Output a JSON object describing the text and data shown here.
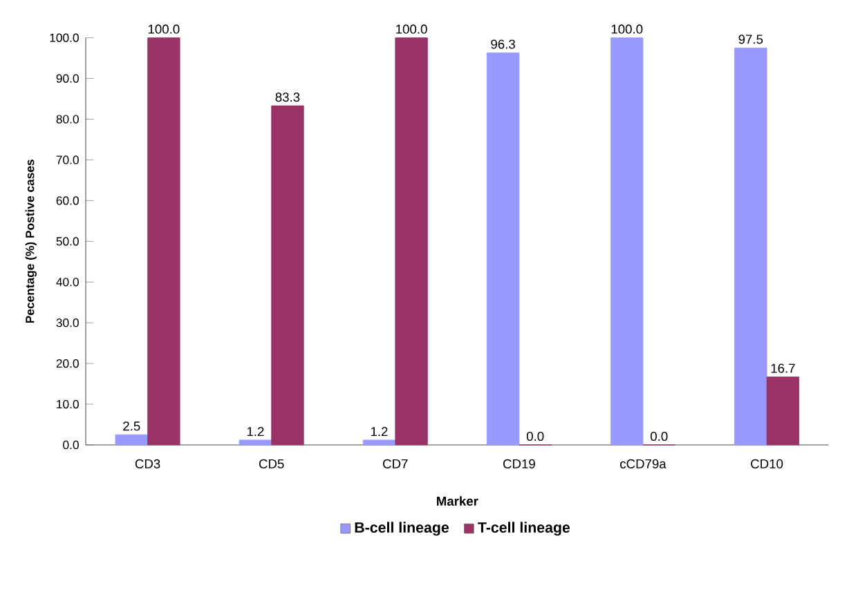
{
  "chart_data": {
    "type": "bar",
    "xlabel": "Marker",
    "ylabel": "Pecentage (%) Postive cases",
    "categories": [
      "CD3",
      "CD5",
      "CD7",
      "CD19",
      "cCD79a",
      "CD10"
    ],
    "series": [
      {
        "name": "B-cell lineage",
        "color": "#9999ff",
        "values": [
          2.5,
          1.2,
          1.2,
          96.3,
          100.0,
          97.5
        ],
        "value_labels": [
          "2.5",
          "1.2",
          "1.2",
          "96.3",
          "100.0",
          "97.5"
        ]
      },
      {
        "name": "T-cell lineage",
        "color": "#993366",
        "values": [
          100.0,
          83.3,
          100.0,
          0.0,
          0.0,
          16.7
        ],
        "value_labels": [
          "100.0",
          "83.3",
          "100.0",
          "0.0",
          "0.0",
          "16.7"
        ]
      }
    ],
    "ylim": [
      0,
      100
    ],
    "yticks": [
      {
        "value": 0,
        "label": "0.0"
      },
      {
        "value": 10,
        "label": "10.0"
      },
      {
        "value": 20,
        "label": "20.0"
      },
      {
        "value": 30,
        "label": "30.0"
      },
      {
        "value": 40,
        "label": "40.0"
      },
      {
        "value": 50,
        "label": "50.0"
      },
      {
        "value": 60,
        "label": "60.0"
      },
      {
        "value": 70,
        "label": "70.0"
      },
      {
        "value": 80,
        "label": "80.0"
      },
      {
        "value": 90,
        "label": "90.0"
      },
      {
        "value": 100,
        "label": "100.0"
      }
    ],
    "grid": false,
    "legend": "bottom"
  }
}
